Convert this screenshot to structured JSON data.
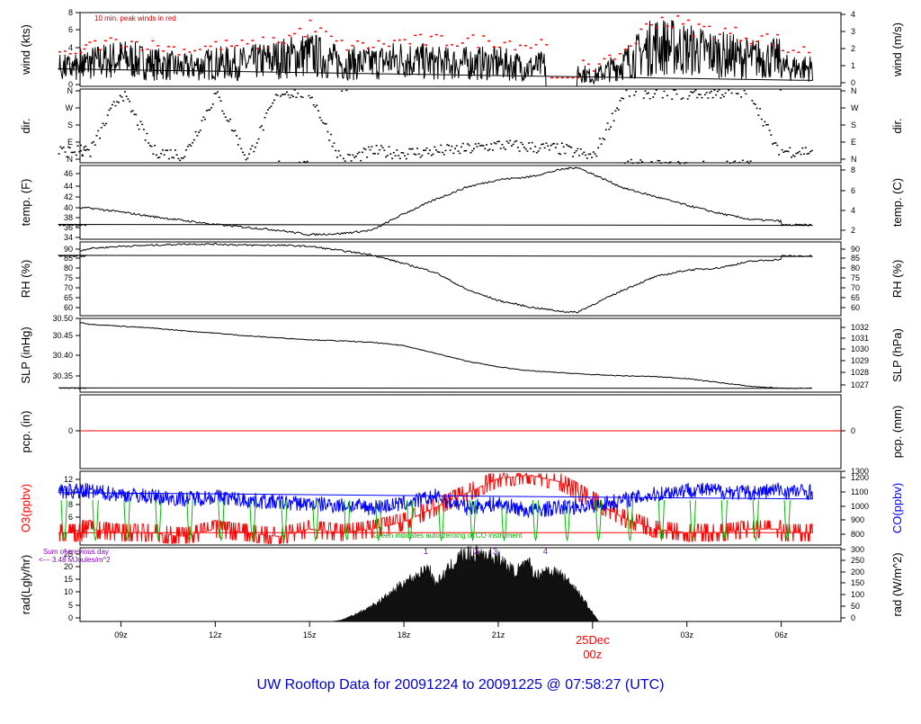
{
  "title": "UW Rooftop Data for 20091224  to  20091225 @ 07:58:27  (UTC)",
  "colors": {
    "frame": "#000000",
    "red": "#ff0000",
    "blue": "#0000ff",
    "green": "#00bb00",
    "purple": "#8800bb",
    "title": "#0000cc"
  },
  "x_axis": {
    "ticks": [
      "09z",
      "12z",
      "15z",
      "18z",
      "21z",
      "03z",
      "06z"
    ],
    "day_label": "25Dec",
    "day_sub": "00z"
  },
  "chart_data": [
    {
      "id": "wind",
      "type": "line",
      "ylabel_left": "wind (kts)",
      "ylabel_right": "wind (m/s)",
      "ylim": [
        0,
        8
      ],
      "left_ticks": [
        "0",
        "2",
        "4",
        "6",
        "8"
      ],
      "right_ticks": [
        "0",
        "1",
        "2",
        "3",
        "4"
      ],
      "annotation": "10 min. peak winds in red",
      "series": [
        {
          "color": "#000000",
          "x": [
            8,
            9,
            10,
            11,
            12,
            13,
            14,
            15,
            16,
            17,
            18,
            19,
            20,
            21,
            22,
            23,
            0,
            1,
            2,
            3,
            4,
            5,
            6,
            7,
            8
          ],
          "values": [
            2.5,
            3.0,
            2.5,
            2.0,
            2.5,
            2.5,
            3.0,
            3.5,
            2.5,
            2.5,
            3.0,
            2.5,
            2.5,
            2.5,
            2.0,
            2.5,
            1.0,
            2.5,
            4.5,
            4.0,
            3.5,
            3.0,
            3.0,
            2.5,
            2.0
          ]
        },
        {
          "color": "#ff0000",
          "x": [
            8,
            9,
            10,
            11,
            12,
            13,
            14,
            15,
            16,
            17,
            18,
            19,
            20,
            21,
            22,
            23,
            0,
            1,
            2,
            3,
            4,
            5,
            6,
            7,
            8
          ],
          "values": [
            4.5,
            5.0,
            4.5,
            4.0,
            4.5,
            4.5,
            5.0,
            6.5,
            4.5,
            4.5,
            5.0,
            5.0,
            5.0,
            5.0,
            4.5,
            5.5,
            2.0,
            4.0,
            7.5,
            6.5,
            6.0,
            5.5,
            5.0,
            4.5,
            4.0
          ]
        }
      ]
    },
    {
      "id": "dir",
      "type": "scatter",
      "ylabel_left": "dir.",
      "ylabel_right": "dir.",
      "ylim": [
        0,
        360
      ],
      "left_ticks": [
        "N",
        "E",
        "S",
        "W",
        "N"
      ],
      "right_ticks": [
        "N",
        "E",
        "S",
        "W",
        "N"
      ],
      "series": [
        {
          "color": "#000000",
          "x": [
            8,
            9,
            10,
            11,
            12,
            13,
            14,
            15,
            16,
            17,
            18,
            19,
            20,
            21,
            22,
            23,
            0,
            1,
            2,
            3,
            4,
            5,
            6,
            7,
            8
          ],
          "values": [
            60,
            350,
            60,
            40,
            340,
            20,
            350,
            340,
            10,
            60,
            50,
            60,
            70,
            90,
            80,
            70,
            30,
            350,
            345,
            340,
            345,
            350,
            10,
            50,
            60
          ]
        }
      ]
    },
    {
      "id": "temp",
      "type": "line",
      "ylabel_left": "temp. (F)",
      "ylabel_right": "temp. (C)",
      "ylim": [
        34,
        47
      ],
      "left_ticks": [
        "34",
        "36",
        "38",
        "40",
        "42",
        "44",
        "46"
      ],
      "right_ticks": [
        "2",
        "4",
        "6",
        "8"
      ],
      "series": [
        {
          "color": "#000000",
          "x": [
            7.7,
            8,
            9,
            10,
            11,
            12,
            13,
            14,
            15,
            16,
            17,
            18,
            19,
            20,
            21,
            22,
            23,
            23.5,
            0,
            1,
            2,
            3,
            4,
            5,
            6,
            7,
            7.9
          ],
          "values": [
            39.5,
            39.5,
            38.8,
            38,
            37.3,
            36.6,
            36.1,
            35.6,
            34.8,
            35.0,
            35.6,
            38.5,
            41.0,
            43.2,
            44.5,
            45.0,
            46.3,
            46.7,
            45.5,
            43.0,
            41.5,
            40.0,
            38.6,
            37.5,
            37.2,
            37.2,
            36.5
          ]
        }
      ]
    },
    {
      "id": "rh",
      "type": "line",
      "ylabel_left": "RH (%)",
      "ylabel_right": "RH (%)",
      "ylim": [
        58,
        92
      ],
      "left_ticks": [
        "60",
        "65",
        "70",
        "75",
        "80",
        "85",
        "90"
      ],
      "right_ticks": [
        "60",
        "65",
        "70",
        "75",
        "80",
        "85",
        "90"
      ],
      "series": [
        {
          "color": "#000000",
          "x": [
            7.7,
            8,
            9,
            10,
            11,
            12,
            13,
            14,
            15,
            16,
            17,
            18,
            19,
            20,
            21,
            22,
            23,
            23.5,
            0,
            1,
            2,
            3,
            4,
            5,
            6,
            7,
            7.9
          ],
          "values": [
            88,
            89,
            90,
            90.5,
            91,
            91,
            90.5,
            90.5,
            90,
            88,
            86,
            82,
            78,
            70,
            65,
            62,
            60,
            59.5,
            63,
            70,
            76,
            79,
            80,
            83,
            84,
            85,
            85.5
          ]
        }
      ]
    },
    {
      "id": "slp",
      "type": "line",
      "ylabel_left": "SLP (inHg)",
      "ylabel_right": "SLP (hPa)",
      "ylim": [
        30.31,
        30.5
      ],
      "left_ticks": [
        "30.35",
        "30.40",
        "30.45",
        "30.50"
      ],
      "right_ticks": [
        "1027",
        "1028",
        "1029",
        "1030",
        "1031",
        "1032"
      ],
      "series": [
        {
          "color": "#000000",
          "x": [
            7.7,
            8,
            9,
            10,
            11,
            12,
            13,
            14,
            15,
            16,
            17,
            18,
            19,
            20,
            21,
            22,
            23,
            0,
            1,
            2,
            3,
            4,
            5,
            6,
            7,
            7.9
          ],
          "values": [
            30.49,
            30.485,
            30.48,
            30.475,
            30.468,
            30.462,
            30.455,
            30.45,
            30.445,
            30.442,
            30.438,
            30.43,
            30.41,
            30.39,
            30.375,
            30.365,
            30.36,
            30.355,
            30.352,
            30.35,
            30.345,
            30.335,
            30.325,
            30.32,
            30.32,
            30.32
          ]
        }
      ]
    },
    {
      "id": "pcp",
      "type": "line",
      "ylabel_left": "pcp. (in)",
      "ylabel_right": "pcp. (mm)",
      "left_ticks": [
        "0"
      ],
      "right_ticks": [
        "0"
      ],
      "series": [
        {
          "color": "#ff0000",
          "x": [
            7.7,
            7.9
          ],
          "values": [
            0,
            0
          ]
        }
      ]
    },
    {
      "id": "o3co",
      "type": "line",
      "ylabel_left": "O3(ppbv)",
      "ylabel_right": "CO(ppbv)",
      "ylim": [
        2.8,
        13
      ],
      "left_ticks": [
        "4",
        "6",
        "8",
        "10",
        "12"
      ],
      "right_ticks": [
        "800",
        "900",
        "1000",
        "1100",
        "1200",
        "1300"
      ],
      "annotation": "Green indicates auto-zeroing of CO instrument",
      "series": [
        {
          "color": "#0000ff",
          "name": "CO",
          "x": [
            7.7,
            8,
            9,
            10,
            11,
            12,
            13,
            14,
            15,
            16,
            17,
            18,
            19,
            20,
            21,
            22,
            23,
            0,
            1,
            2,
            3,
            4,
            5,
            6,
            7,
            7.9
          ],
          "values": [
            10.5,
            10.2,
            9.8,
            9.5,
            9.2,
            9.5,
            9.0,
            8.7,
            8.5,
            8.3,
            8.0,
            8.5,
            9.5,
            8.0,
            8.5,
            7.5,
            8.0,
            8.3,
            9.0,
            9.8,
            10.5,
            10.3,
            10.0,
            10.5,
            10.8,
            10.2
          ]
        },
        {
          "color": "#ff0000",
          "name": "O3",
          "x": [
            7.7,
            8,
            9,
            10,
            11,
            12,
            13,
            14,
            15,
            16,
            17,
            18,
            19,
            20,
            21,
            22,
            23,
            0,
            1,
            2,
            3,
            4,
            5,
            6,
            7,
            7.9
          ],
          "values": [
            5.0,
            5.0,
            4.5,
            4.5,
            4.0,
            5.0,
            4.5,
            4.0,
            5.0,
            4.5,
            5.0,
            6.0,
            8.0,
            10.0,
            12.0,
            12.5,
            11.5,
            9.0,
            6.5,
            5.0,
            4.5,
            4.5,
            5.0,
            5.0,
            5.0,
            4.5
          ]
        }
      ]
    },
    {
      "id": "rad",
      "type": "area",
      "ylabel_left": "rad(Lgly/hr)",
      "ylabel_right": "rad (W/m^2)",
      "ylim": [
        0,
        26
      ],
      "left_ticks": [
        "0",
        "5",
        "10",
        "15",
        "20",
        "25"
      ],
      "right_ticks": [
        "0",
        "50",
        "100",
        "150",
        "200",
        "250",
        "300"
      ],
      "summary": [
        "Sum of previous day",
        "<--- 3.48 MJoules/m^2"
      ],
      "markers": [
        "1",
        "2",
        "3",
        "4"
      ],
      "series": [
        {
          "color": "#000000",
          "x": [
            15.7,
            16,
            16.5,
            17,
            17.5,
            18,
            18.5,
            18.8,
            19,
            19.5,
            19.8,
            20.5,
            21,
            21.5,
            22,
            22.2,
            22.5,
            23,
            23.5,
            23.9,
            0.2
          ],
          "values": [
            0,
            0.5,
            3,
            6,
            10,
            15,
            18,
            21,
            14,
            21,
            25,
            26,
            24,
            19,
            22,
            17,
            20,
            18,
            12,
            5,
            0
          ]
        }
      ]
    }
  ]
}
